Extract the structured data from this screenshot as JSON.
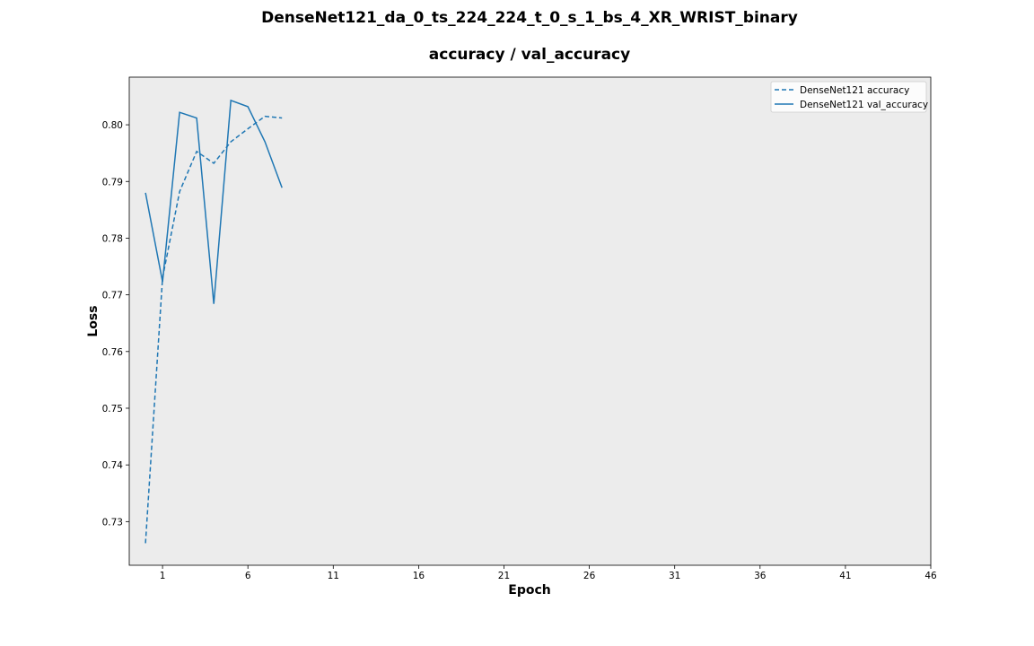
{
  "chart_data": {
    "type": "line",
    "title": "DenseNet121_da_0_ts_224_224_t_0_s_1_bs_4_XR_WRIST_binary",
    "subtitle": "accuracy / val_accuracy",
    "xlabel": "Epoch",
    "ylabel": "Loss",
    "xlim": [
      -0.95,
      46
    ],
    "ylim": [
      0.7223,
      0.8084
    ],
    "x_ticks": [
      1,
      6,
      11,
      16,
      21,
      26,
      31,
      36,
      41,
      46
    ],
    "y_ticks": [
      0.73,
      0.74,
      0.75,
      0.76,
      0.77,
      0.78,
      0.79,
      0.8
    ],
    "legend_position": "top-right",
    "background": "#ececec",
    "series": [
      {
        "name": "DenseNet121 accuracy",
        "style": "dashed",
        "color": "#1f77b4",
        "x": [
          0,
          1,
          2,
          3,
          4,
          5,
          6,
          7,
          8
        ],
        "values": [
          0.7262,
          0.773,
          0.7882,
          0.7953,
          0.7932,
          0.797,
          0.7993,
          0.8015,
          0.8012
        ]
      },
      {
        "name": "DenseNet121 val_accuracy",
        "style": "solid",
        "color": "#1f77b4",
        "x": [
          0,
          1,
          2,
          3,
          4,
          5,
          6,
          7,
          8
        ],
        "values": [
          0.788,
          0.7723,
          0.8022,
          0.8012,
          0.7684,
          0.8043,
          0.8032,
          0.797,
          0.7889
        ]
      }
    ]
  }
}
